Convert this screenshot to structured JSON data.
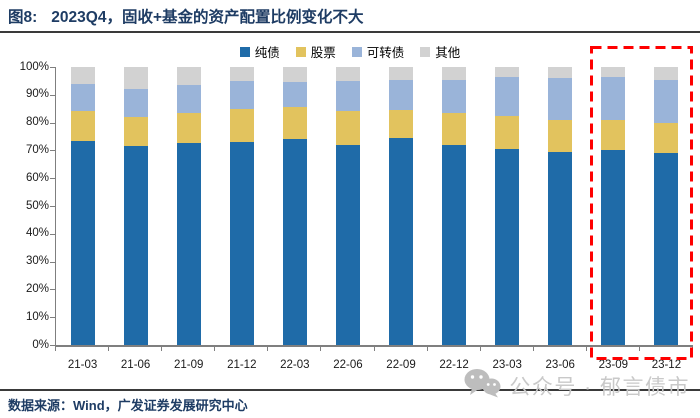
{
  "header": {
    "figure_label": "图8:",
    "title": "2023Q4，固收+基金的资产配置比例变化不大"
  },
  "chart_data": {
    "type": "bar",
    "stacked": true,
    "title": "固收+基金的资产配置比例",
    "categories": [
      "21-03",
      "21-06",
      "21-09",
      "21-12",
      "22-03",
      "22-06",
      "22-09",
      "22-12",
      "23-03",
      "23-06",
      "23-09",
      "23-12"
    ],
    "series": [
      {
        "name": "纯债",
        "color": "#1f6ba8",
        "values": [
          73.5,
          71.5,
          72.5,
          73,
          74,
          72,
          74.5,
          72,
          70.5,
          69.5,
          70,
          69
        ]
      },
      {
        "name": "股票",
        "color": "#e2c35e",
        "values": [
          10.5,
          10.5,
          11,
          12,
          11.5,
          12,
          10,
          11.5,
          12,
          11.5,
          11,
          11
        ]
      },
      {
        "name": "可转债",
        "color": "#9ab4d9",
        "values": [
          10,
          10,
          10,
          10,
          9,
          11,
          11,
          12,
          14,
          15,
          15.5,
          15.5
        ]
      },
      {
        "name": "其他",
        "color": "#d2d2d2",
        "values": [
          6,
          8,
          6.5,
          5,
          5.5,
          5,
          4.5,
          4.5,
          3.5,
          4,
          3.5,
          4.5
        ]
      }
    ],
    "y_ticks": [
      "100%",
      "90%",
      "80%",
      "70%",
      "60%",
      "50%",
      "40%",
      "30%",
      "20%",
      "10%",
      "0%"
    ],
    "ylim": [
      0,
      100
    ],
    "grid": false,
    "legend_position": "top",
    "highlight": {
      "categories": [
        "23-09",
        "23-12"
      ],
      "style": "red-dashed-box",
      "color": "#ff0000"
    }
  },
  "footer": {
    "source": "数据来源：Wind，广发证券发展研究中心"
  },
  "watermark": {
    "icon": "wechat-icon",
    "text": "公众号 · 郁言债市"
  }
}
